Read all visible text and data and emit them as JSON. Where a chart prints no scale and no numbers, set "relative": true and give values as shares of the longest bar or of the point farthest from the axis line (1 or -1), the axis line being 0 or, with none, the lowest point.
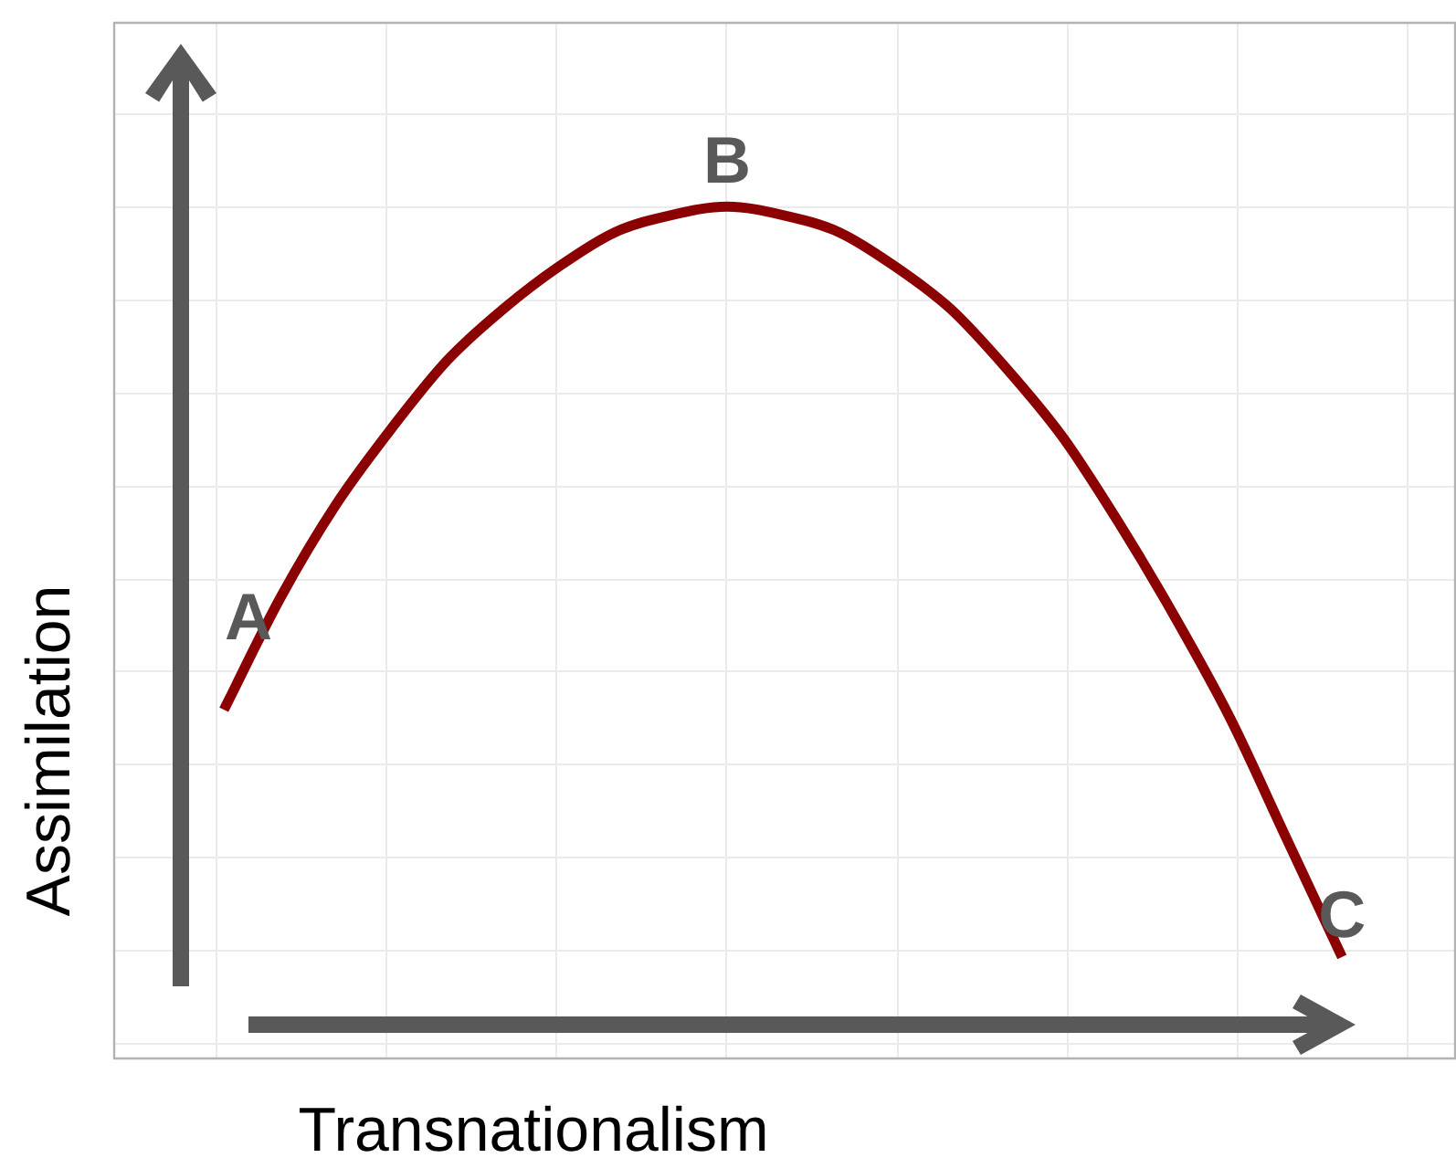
{
  "chart_data": {
    "type": "line",
    "xlabel": "Transnationalism",
    "ylabel": "Assimilation",
    "relative": true,
    "grid": true,
    "tick_labels": false,
    "marker": "none",
    "line_style": "solid",
    "categories": [
      null,
      null,
      null,
      null,
      null,
      null,
      null,
      null,
      null,
      null,
      null,
      null,
      null,
      null,
      null,
      null,
      null,
      null,
      null,
      null,
      null
    ],
    "series": [
      {
        "color": "#8b0000",
        "values": [
          0.41,
          0.54,
          0.65,
          0.74,
          0.82,
          0.88,
          0.93,
          0.97,
          0.99,
          1.0,
          0.99,
          0.97,
          0.93,
          0.88,
          0.81,
          0.73,
          0.63,
          0.52,
          0.4,
          0.26,
          0.12
        ]
      }
    ],
    "annotations": [
      "A",
      {
        "text": "B",
        "y": 1.0
      },
      {
        "text": "C",
        "y": 0.12
      }
    ]
  }
}
